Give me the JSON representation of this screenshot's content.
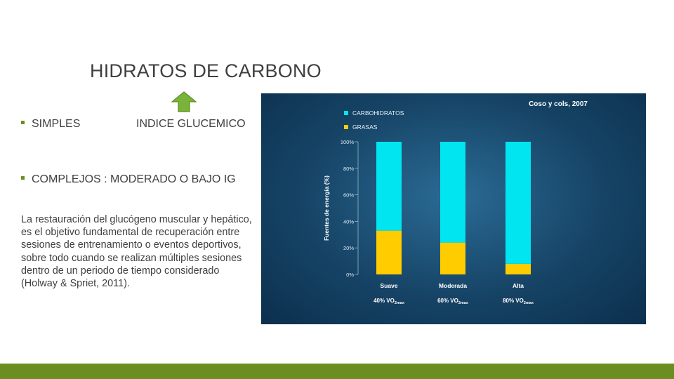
{
  "slide": {
    "title": "HIDRATOS DE CARBONO",
    "bullet_simples": "SIMPLES",
    "indice": "INDICE GLUCEMICO",
    "bullet_complejos": "COMPLEJOS : MODERADO O BAJO IG",
    "paragraph": "La restauración del glucógeno muscular y hepático, es el objetivo fundamental de recuperación entre sesiones de entrenamiento o eventos deportivos, sobre todo cuando se realizan múltiples sesiones dentro de un periodo de tiempo considerado (Holway & Spriet, 2011).",
    "arrow_icon": "up-arrow-icon",
    "accent_color": "#6b8e23"
  },
  "chart_data": {
    "type": "bar",
    "stacked": true,
    "source_label": "Coso y cols, 2007",
    "ylabel": "Fuentes de energía (%)",
    "xlabel": "",
    "ylim": [
      0,
      100
    ],
    "yticks": [
      "0%",
      "20%",
      "40%",
      "60%",
      "80%",
      "100%"
    ],
    "categories": [
      "Suave",
      "Moderada",
      "Alta"
    ],
    "subcategories": [
      {
        "prefix": "40% VO",
        "sub": "2max"
      },
      {
        "prefix": "60% VO",
        "sub": "2max"
      },
      {
        "prefix": "80% VO",
        "sub": "2max"
      }
    ],
    "series": [
      {
        "name": "GRASAS",
        "color": "#ffcc00",
        "values": [
          33,
          24,
          8
        ]
      },
      {
        "name": "CARBOHIDRATOS",
        "color": "#00e5f0",
        "values": [
          67,
          76,
          92
        ]
      }
    ],
    "legend_order": [
      "CARBOHIDRATOS",
      "GRASAS"
    ],
    "legend_position": "top-left",
    "grid": false
  }
}
